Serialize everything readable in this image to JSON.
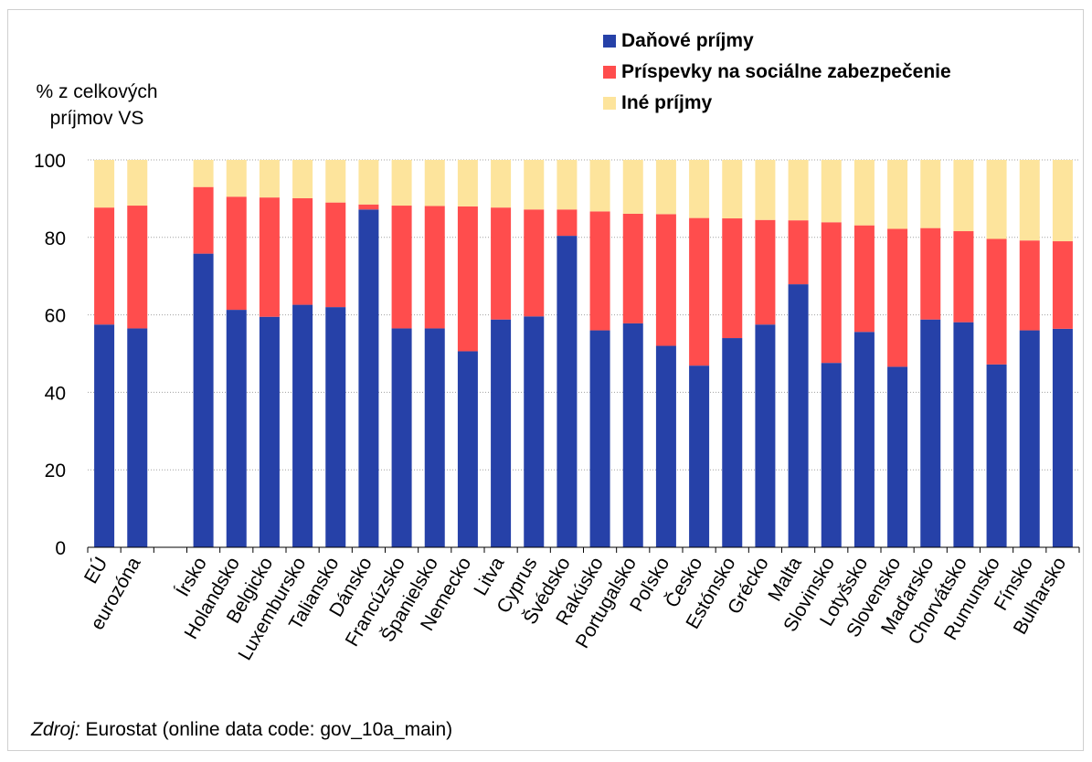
{
  "chart_data": {
    "type": "bar",
    "stacked": true,
    "ylabel": "% z celkových príjmov VS",
    "ylim": [
      0,
      100
    ],
    "yticks": [
      0,
      20,
      40,
      60,
      80,
      100
    ],
    "grid": true,
    "legend_position": "top-right",
    "categories": [
      "EÚ",
      "eurozóna",
      "",
      "Írsko",
      "Holandsko",
      "Belgicko",
      "Luxembursko",
      "Taliansko",
      "Dánsko",
      "Francúzsko",
      "Španielsko",
      "Nemecko",
      "Litva",
      "Cyprus",
      "Švédsko",
      "Rakúsko",
      "Portugalsko",
      "Poľsko",
      "Česko",
      "Estónsko",
      "Grécko",
      "Malta",
      "Slovinsko",
      "Lotyšsko",
      "Slovensko",
      "Maďarsko",
      "Chorvátsko",
      "Rumunsko",
      "Fínsko",
      "Bulharsko"
    ],
    "series": [
      {
        "name": "Daňové príjmy",
        "color": "#2641a8",
        "values": [
          57.5,
          56.5,
          null,
          75.8,
          61.3,
          59.5,
          62.6,
          62.0,
          87.2,
          56.5,
          56.5,
          50.6,
          58.8,
          59.6,
          80.4,
          56.0,
          57.8,
          52.0,
          46.9,
          54.0,
          57.5,
          67.9,
          47.6,
          55.6,
          46.6,
          58.8,
          58.1,
          47.2,
          56.0,
          56.4
        ]
      },
      {
        "name": "Príspevky na sociálne zabezpečenie",
        "color": "#ff4d4d",
        "values": [
          30.2,
          31.7,
          null,
          17.2,
          29.2,
          30.8,
          27.5,
          27.0,
          1.3,
          31.7,
          31.6,
          37.4,
          28.9,
          27.6,
          6.8,
          30.7,
          28.3,
          34.0,
          38.1,
          30.9,
          27.0,
          16.5,
          36.3,
          27.5,
          35.6,
          23.6,
          23.5,
          32.4,
          23.2,
          22.6
        ]
      },
      {
        "name": "Iné príjmy",
        "color": "#fde49c",
        "values": [
          12.3,
          11.8,
          null,
          7.0,
          9.5,
          9.7,
          9.9,
          11.0,
          11.5,
          11.8,
          11.9,
          12.0,
          12.3,
          12.8,
          12.8,
          13.3,
          13.9,
          14.0,
          15.0,
          15.1,
          15.5,
          15.6,
          16.1,
          16.9,
          17.8,
          17.6,
          18.4,
          20.4,
          20.8,
          21.0
        ]
      }
    ]
  },
  "source": {
    "prefix": "Zdroj:",
    "text": " Eurostat (online data code: gov_10a_main)"
  }
}
